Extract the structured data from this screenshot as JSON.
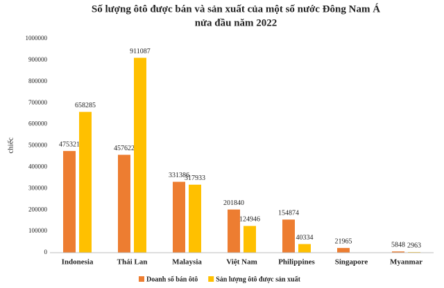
{
  "chart_data": {
    "type": "bar",
    "title": "Số lượng ôtô được bán và sản xuất của một số nước Đông Nam Á",
    "subtitle": "nửa đầu năm 2022",
    "y_label": "chiếc",
    "categories": [
      "Indonesia",
      "Thái Lan",
      "Malaysia",
      "Việt Nam",
      "Philippines",
      "Singapore",
      "Myanmar"
    ],
    "series": [
      {
        "name": "Doanh số bán ôtô",
        "color": "#ed7d31",
        "values": [
          475321,
          457622,
          331386,
          201840,
          154874,
          21965,
          5848
        ]
      },
      {
        "name": "Sản lượng ôtô được sản xuất",
        "color": "#ffc000",
        "values": [
          658285,
          911087,
          317933,
          124946,
          40334,
          null,
          2963
        ]
      }
    ],
    "ylim": [
      0,
      1000000
    ],
    "yticks": [
      0,
      100000,
      200000,
      300000,
      400000,
      500000,
      600000,
      700000,
      800000,
      900000,
      1000000
    ],
    "grid": false,
    "legend": "bottom"
  }
}
